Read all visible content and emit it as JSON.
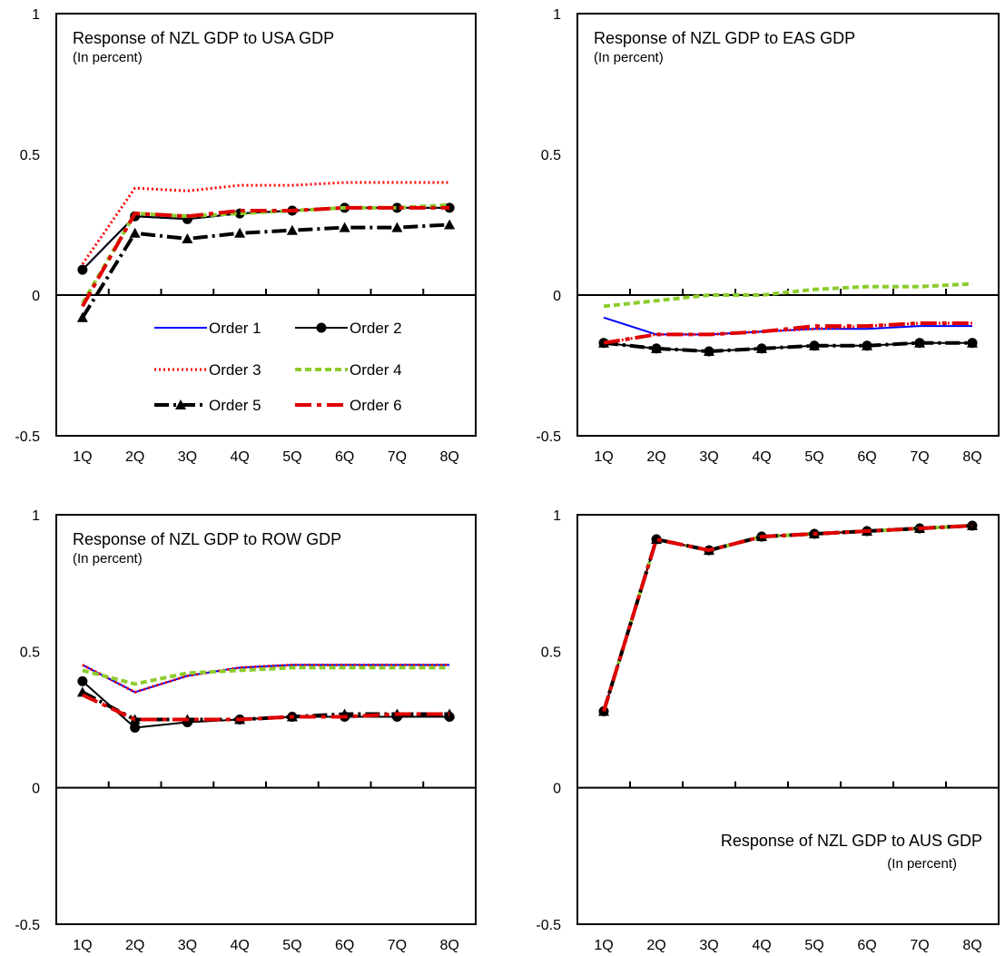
{
  "legend": {
    "entries": [
      {
        "label": "Order 1",
        "series": "order1"
      },
      {
        "label": "Order 2",
        "series": "order2"
      },
      {
        "label": "Order 3",
        "series": "order3"
      },
      {
        "label": "Order 4",
        "series": "order4"
      },
      {
        "label": "Order 5",
        "series": "order5"
      },
      {
        "label": "Order 6",
        "series": "order6"
      }
    ]
  },
  "styles": {
    "order1": {
      "color": "#0000ff",
      "dash": "",
      "width": 2,
      "marker": "none"
    },
    "order2": {
      "color": "#000000",
      "dash": "",
      "width": 2,
      "marker": "circle"
    },
    "order3": {
      "color": "#ff0000",
      "dash": "2,3",
      "width": 3,
      "marker": "none"
    },
    "order4": {
      "color": "#8ccc2c",
      "dash": "7,4",
      "width": 4,
      "marker": "none"
    },
    "order5": {
      "color": "#000000",
      "dash": "16,5,3,5",
      "width": 4,
      "marker": "triangle"
    },
    "order6": {
      "color": "#e00000",
      "dash": "18,6,5,6",
      "width": 4,
      "marker": "none"
    }
  },
  "chart_data": [
    {
      "type": "line",
      "title": "Response of NZL GDP to USA GDP",
      "subtitle": "(In percent)",
      "title_position": "top-left",
      "show_legend": true,
      "categories": [
        "1Q",
        "2Q",
        "3Q",
        "4Q",
        "5Q",
        "6Q",
        "7Q",
        "8Q"
      ],
      "ylim": [
        -0.5,
        1
      ],
      "yticks": [
        "1",
        "0.5",
        "0",
        "-0.5"
      ],
      "series": [
        {
          "key": "order1",
          "values": [
            0.09,
            0.28,
            0.27,
            0.29,
            0.3,
            0.31,
            0.31,
            0.31
          ]
        },
        {
          "key": "order2",
          "values": [
            0.09,
            0.28,
            0.27,
            0.29,
            0.3,
            0.31,
            0.31,
            0.31
          ]
        },
        {
          "key": "order3",
          "values": [
            0.11,
            0.38,
            0.37,
            0.39,
            0.39,
            0.4,
            0.4,
            0.4
          ]
        },
        {
          "key": "order4",
          "values": [
            -0.03,
            0.29,
            0.28,
            0.29,
            0.3,
            0.31,
            0.31,
            0.32
          ]
        },
        {
          "key": "order5",
          "values": [
            -0.08,
            0.22,
            0.2,
            0.22,
            0.23,
            0.24,
            0.24,
            0.25
          ]
        },
        {
          "key": "order6",
          "values": [
            -0.04,
            0.29,
            0.28,
            0.3,
            0.3,
            0.31,
            0.31,
            0.31
          ]
        }
      ]
    },
    {
      "type": "line",
      "title": "Response of NZL GDP to EAS GDP",
      "subtitle": "(In percent)",
      "title_position": "top-left",
      "show_legend": false,
      "categories": [
        "1Q",
        "2Q",
        "3Q",
        "4Q",
        "5Q",
        "6Q",
        "7Q",
        "8Q"
      ],
      "ylim": [
        -0.5,
        1
      ],
      "yticks": [
        "1",
        "0.5",
        "0",
        "-0.5"
      ],
      "series": [
        {
          "key": "order1",
          "values": [
            -0.08,
            -0.14,
            -0.14,
            -0.13,
            -0.12,
            -0.12,
            -0.11,
            -0.11
          ]
        },
        {
          "key": "order2",
          "values": [
            -0.17,
            -0.19,
            -0.2,
            -0.19,
            -0.18,
            -0.18,
            -0.17,
            -0.17
          ]
        },
        {
          "key": "order3",
          "values": [
            -0.17,
            -0.14,
            -0.14,
            -0.13,
            -0.12,
            -0.11,
            -0.1,
            -0.1
          ]
        },
        {
          "key": "order4",
          "values": [
            -0.04,
            -0.02,
            0.0,
            0.0,
            0.02,
            0.03,
            0.03,
            0.04
          ]
        },
        {
          "key": "order5",
          "values": [
            -0.17,
            -0.19,
            -0.2,
            -0.19,
            -0.18,
            -0.18,
            -0.17,
            -0.17
          ]
        },
        {
          "key": "order6",
          "values": [
            -0.17,
            -0.14,
            -0.14,
            -0.13,
            -0.11,
            -0.11,
            -0.1,
            -0.1
          ]
        }
      ]
    },
    {
      "type": "line",
      "title": "Response of NZL GDP to ROW GDP",
      "subtitle": "(In percent)",
      "title_position": "top-left",
      "show_legend": false,
      "categories": [
        "1Q",
        "2Q",
        "3Q",
        "4Q",
        "5Q",
        "6Q",
        "7Q",
        "8Q"
      ],
      "ylim": [
        -0.5,
        1
      ],
      "yticks": [
        "1",
        "0.5",
        "0",
        "-0.5"
      ],
      "series": [
        {
          "key": "order1",
          "values": [
            0.45,
            0.35,
            0.41,
            0.44,
            0.45,
            0.45,
            0.45,
            0.45
          ]
        },
        {
          "key": "order2",
          "values": [
            0.39,
            0.22,
            0.24,
            0.25,
            0.26,
            0.26,
            0.26,
            0.26
          ]
        },
        {
          "key": "order3",
          "values": [
            0.45,
            0.35,
            0.41,
            0.44,
            0.45,
            0.45,
            0.45,
            0.45
          ]
        },
        {
          "key": "order4",
          "values": [
            0.43,
            0.38,
            0.42,
            0.43,
            0.44,
            0.44,
            0.44,
            0.44
          ]
        },
        {
          "key": "order5",
          "values": [
            0.35,
            0.25,
            0.25,
            0.25,
            0.26,
            0.27,
            0.27,
            0.27
          ]
        },
        {
          "key": "order6",
          "values": [
            0.34,
            0.25,
            0.25,
            0.25,
            0.26,
            0.26,
            0.27,
            0.27
          ]
        }
      ]
    },
    {
      "type": "line",
      "title": "Response of NZL GDP to AUS GDP",
      "subtitle": "(In percent)",
      "title_position": "bottom-right",
      "show_legend": false,
      "categories": [
        "1Q",
        "2Q",
        "3Q",
        "4Q",
        "5Q",
        "6Q",
        "7Q",
        "8Q"
      ],
      "ylim": [
        -0.5,
        1
      ],
      "yticks": [
        "1",
        "0.5",
        "0",
        "-0.5"
      ],
      "series": [
        {
          "key": "order1",
          "values": [
            0.28,
            0.91,
            0.87,
            0.92,
            0.93,
            0.94,
            0.95,
            0.96
          ]
        },
        {
          "key": "order2",
          "values": [
            0.28,
            0.91,
            0.87,
            0.92,
            0.93,
            0.94,
            0.95,
            0.96
          ]
        },
        {
          "key": "order3",
          "values": [
            0.28,
            0.91,
            0.87,
            0.92,
            0.93,
            0.94,
            0.95,
            0.96
          ]
        },
        {
          "key": "order4",
          "values": [
            0.28,
            0.91,
            0.87,
            0.92,
            0.93,
            0.94,
            0.95,
            0.96
          ]
        },
        {
          "key": "order5",
          "values": [
            0.28,
            0.91,
            0.87,
            0.92,
            0.93,
            0.94,
            0.95,
            0.96
          ]
        },
        {
          "key": "order6",
          "values": [
            0.28,
            0.91,
            0.87,
            0.92,
            0.93,
            0.94,
            0.95,
            0.96
          ]
        }
      ]
    }
  ]
}
